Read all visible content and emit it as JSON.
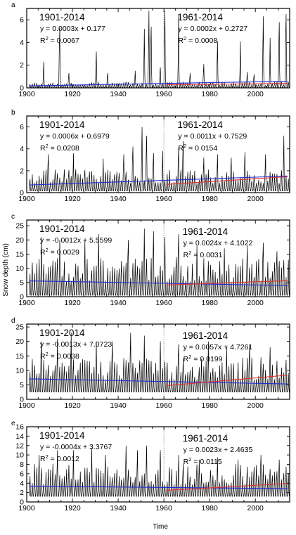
{
  "figure": {
    "ylabel": "Snow depth (cm)",
    "xlabel": "Time"
  },
  "colors": {
    "series": "#000000",
    "trend_1901_2014": "#1f2bd6",
    "trend_1961_2014": "#e03030",
    "divider": "#888888"
  },
  "chart_data": [
    {
      "type": "line",
      "panel": "a",
      "x_range": [
        1900,
        2015
      ],
      "ylim": [
        0,
        7
      ],
      "x_ticks": [
        1900,
        1920,
        1940,
        1960,
        1980,
        2000
      ],
      "y_ticks": [
        0,
        2,
        4,
        6
      ],
      "divider_x": 1960,
      "series_profile": {
        "base": 0.04,
        "amp": 0.5,
        "spikes": [
          [
            1907,
            2.3
          ],
          [
            1914,
            5.3
          ],
          [
            1918,
            1.3
          ],
          [
            1930,
            3.2
          ],
          [
            1935,
            1.3
          ],
          [
            1947,
            1.5
          ],
          [
            1951,
            5.2
          ],
          [
            1953,
            6.8
          ],
          [
            1954,
            5.4
          ],
          [
            1958,
            1.8
          ],
          [
            1960,
            6.8
          ],
          [
            1966,
            6.5
          ],
          [
            1971,
            1.3
          ],
          [
            1977,
            2.1
          ],
          [
            1983,
            4.1
          ],
          [
            1993,
            4.1
          ],
          [
            1996,
            1.4
          ],
          [
            1999,
            1.2
          ],
          [
            2003,
            6.3
          ],
          [
            2006,
            4.4
          ],
          [
            2010,
            5.8
          ],
          [
            2013,
            6.5
          ]
        ]
      },
      "trends": [
        {
          "period": "1901-2014",
          "x_range": [
            1901,
            2014
          ],
          "equation": "y = 0.0003x + 0.177",
          "r2_label": "R",
          "r2_value": " = 0.0067",
          "color": "#1f2bd6"
        },
        {
          "period": "1961-2014",
          "x_range": [
            1961,
            2014
          ],
          "equation": "y = 0.0002x + 0.2727",
          "r2_label": "R",
          "r2_value": " = 0.0008",
          "color": "#e03030"
        }
      ]
    },
    {
      "type": "line",
      "panel": "b",
      "x_range": [
        1900,
        2015
      ],
      "ylim": [
        0,
        7
      ],
      "x_ticks": [
        1900,
        1920,
        1940,
        1960,
        1980,
        2000
      ],
      "y_ticks": [
        0,
        2,
        4,
        6
      ],
      "divider_x": 1960,
      "series_profile": {
        "base": 0.15,
        "amp": 2.0,
        "spikes": [
          [
            1909,
            3.5
          ],
          [
            1920,
            3.6
          ],
          [
            1933,
            3.1
          ],
          [
            1942,
            3.5
          ],
          [
            1946,
            4.2
          ],
          [
            1950,
            6.0
          ],
          [
            1952,
            5.2
          ],
          [
            1955,
            3.6
          ],
          [
            1959,
            3.8
          ],
          [
            1966,
            4.1
          ],
          [
            1968,
            4.7
          ],
          [
            1977,
            3.2
          ],
          [
            1983,
            3.5
          ],
          [
            1989,
            3.2
          ],
          [
            1995,
            3.7
          ],
          [
            2004,
            3.5
          ],
          [
            2012,
            5.2
          ]
        ]
      },
      "trends": [
        {
          "period": "1901-2014",
          "x_range": [
            1901,
            2014
          ],
          "equation": "y = 0.0006x + 0.6979",
          "r2_label": "R",
          "r2_value": " = 0.0208",
          "color": "#1f2bd6"
        },
        {
          "period": "1961-2014",
          "x_range": [
            1961,
            2014
          ],
          "equation": "y = 0.0011x + 0.7529",
          "r2_label": "R",
          "r2_value": " = 0.0154",
          "color": "#e03030"
        }
      ]
    },
    {
      "type": "line",
      "panel": "c",
      "x_range": [
        1900,
        2015
      ],
      "ylim": [
        0,
        27
      ],
      "x_ticks": [
        1900,
        1920,
        1940,
        1960,
        1980,
        2000
      ],
      "y_ticks": [
        0,
        5,
        10,
        15,
        20,
        25
      ],
      "divider_x": 1960,
      "series_profile": {
        "base": 0.5,
        "amp": 13.5,
        "spikes": [
          [
            1906,
            21
          ],
          [
            1914,
            20
          ],
          [
            1925,
            20
          ],
          [
            1931,
            22
          ],
          [
            1944,
            20
          ],
          [
            1951,
            24
          ],
          [
            1955,
            23
          ],
          [
            1960,
            21
          ],
          [
            1966,
            22
          ],
          [
            1974,
            18
          ],
          [
            1986,
            17
          ],
          [
            1996,
            18
          ],
          [
            2003,
            19
          ],
          [
            2009,
            16
          ]
        ]
      },
      "trends": [
        {
          "period": "1901-2014",
          "x_range": [
            1901,
            2014
          ],
          "equation": "y = -0.0012x + 5.5599",
          "r2_label": "R",
          "r2_value": " = 0.0029",
          "color": "#1f2bd6"
        },
        {
          "period": "1961-2014",
          "x_range": [
            1961,
            2014
          ],
          "equation": "y = 0.0024x + 4.1022",
          "r2_label": "R",
          "r2_value": " = 0.0031",
          "color": "#e03030"
        }
      ]
    },
    {
      "type": "line",
      "panel": "d",
      "x_range": [
        1900,
        2015
      ],
      "ylim": [
        0,
        26
      ],
      "x_ticks": [
        1900,
        1920,
        1940,
        1960,
        1980,
        2000
      ],
      "y_ticks": [
        0,
        5,
        10,
        15,
        20,
        25
      ],
      "divider_x": 1960,
      "series_profile": {
        "base": 2.5,
        "amp": 12.0,
        "spikes": [
          [
            1906,
            20
          ],
          [
            1913,
            21
          ],
          [
            1919,
            23
          ],
          [
            1930,
            20
          ],
          [
            1937,
            20
          ],
          [
            1945,
            23
          ],
          [
            1951,
            22
          ],
          [
            1958,
            20
          ],
          [
            1966,
            19
          ],
          [
            1979,
            20
          ],
          [
            1987,
            18
          ],
          [
            1997,
            19
          ],
          [
            2006,
            18
          ]
        ]
      },
      "trends": [
        {
          "period": "1901-2014",
          "x_range": [
            1901,
            2014
          ],
          "equation": "y = -0.0013x + 7.0723",
          "r2_label": "R",
          "r2_value": " = 0.0038",
          "color": "#1f2bd6"
        },
        {
          "period": "1961-2014",
          "x_range": [
            1961,
            2014
          ],
          "equation": "y = 0.0057x + 4.7261",
          "r2_label": "R",
          "r2_value": " = 0.0199",
          "color": "#e03030"
        }
      ]
    },
    {
      "type": "line",
      "panel": "e",
      "x_range": [
        1900,
        2015
      ],
      "ylim": [
        0,
        16
      ],
      "x_ticks": [
        1900,
        1920,
        1940,
        1960,
        1980,
        2000
      ],
      "y_ticks": [
        0,
        2,
        4,
        6,
        8,
        10,
        12,
        14,
        16
      ],
      "divider_x": 1960,
      "series_profile": {
        "base": 1.2,
        "amp": 7.0,
        "spikes": [
          [
            1905,
            10
          ],
          [
            1913,
            11
          ],
          [
            1920,
            11
          ],
          [
            1928,
            11.5
          ],
          [
            1934,
            10
          ],
          [
            1943,
            12
          ],
          [
            1948,
            11
          ],
          [
            1952,
            12
          ],
          [
            1958,
            11
          ],
          [
            1966,
            10
          ],
          [
            1975,
            9
          ],
          [
            1983,
            9.5
          ],
          [
            1992,
            9
          ],
          [
            2002,
            10
          ],
          [
            2010,
            9
          ]
        ]
      },
      "trends": [
        {
          "period": "1901-2014",
          "x_range": [
            1901,
            2014
          ],
          "equation": "y = -0.0004x + 3.3767",
          "r2_label": "R",
          "r2_value": " = 0.0012",
          "color": "#1f2bd6"
        },
        {
          "period": "1961-2014",
          "x_range": [
            1961,
            2014
          ],
          "equation": "y = 0.0023x + 2.4635",
          "r2_label": "R",
          "r2_value": " = 0.0115",
          "color": "#e03030"
        }
      ]
    }
  ]
}
